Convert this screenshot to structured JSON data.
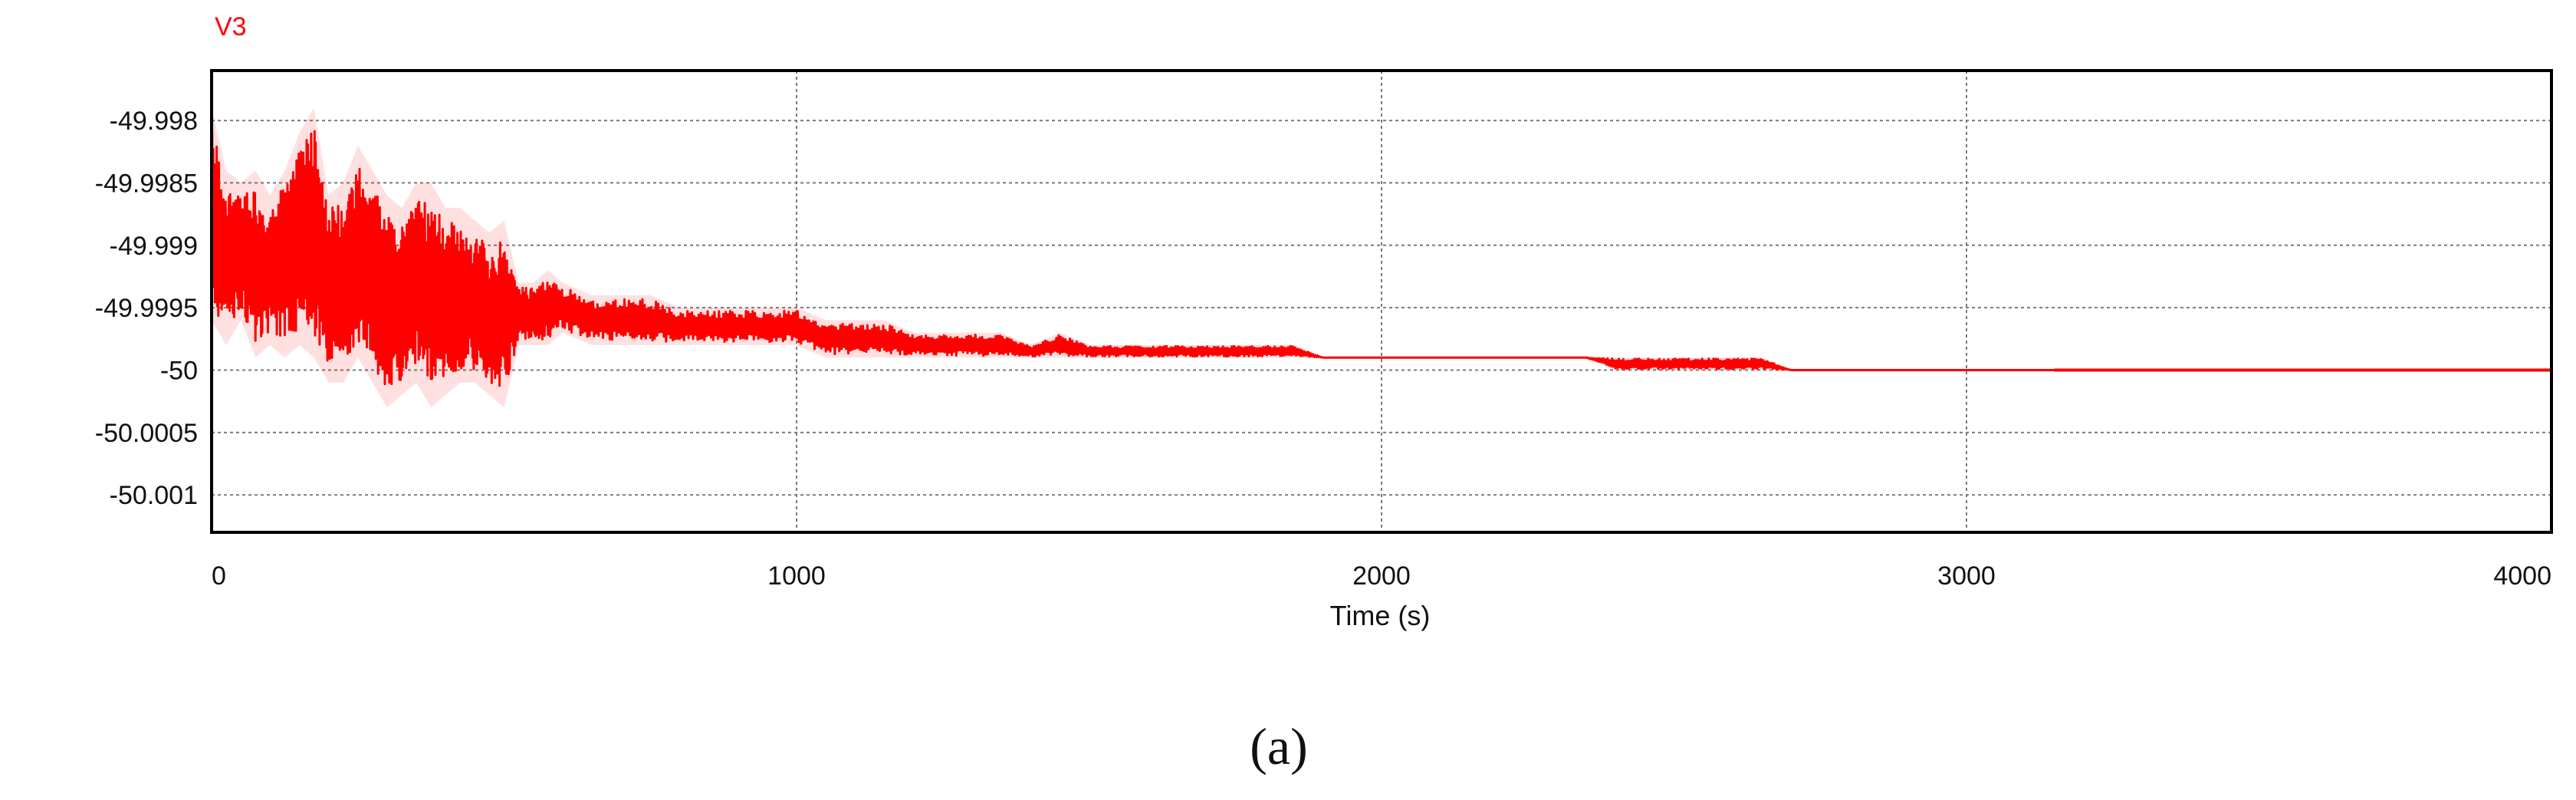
{
  "chart_data": {
    "type": "line",
    "series_label": "V3",
    "panel_label": "(a)",
    "xlabel": "Time (s)",
    "ylabel": "",
    "xlim": [
      0,
      4000
    ],
    "ylim": [
      -50.0013,
      -49.9976
    ],
    "x_ticks": [
      0,
      1000,
      2000,
      3000,
      4000
    ],
    "x_tick_labels": [
      "0",
      "1000",
      "2000",
      "3000",
      "4000"
    ],
    "y_ticks": [
      -49.998,
      -49.9985,
      -49.999,
      -49.9995,
      -50,
      -50.0005,
      -50.001
    ],
    "y_tick_labels": [
      "-49.998",
      "-49.9985",
      "-49.999",
      "-49.9995",
      "-50",
      "-50.0005",
      "-50.001"
    ],
    "grid": true,
    "series": [
      {
        "name": "V3",
        "color": "#ff0000",
        "x": [
          0,
          25,
          50,
          75,
          100,
          125,
          150,
          175,
          200,
          225,
          250,
          275,
          300,
          325,
          350,
          375,
          400,
          425,
          450,
          475,
          500,
          525,
          550,
          575,
          600,
          650,
          700,
          750,
          800,
          850,
          900,
          950,
          1000,
          1050,
          1100,
          1150,
          1200,
          1250,
          1300,
          1350,
          1400,
          1450,
          1500,
          1550,
          1600,
          1650,
          1700,
          1750,
          1800,
          1850,
          1900,
          1950,
          2000,
          2050,
          2100,
          2150,
          2200,
          2250,
          2300,
          2350,
          2400,
          2450,
          2500,
          2550,
          2600,
          2650,
          2700,
          2750,
          2800,
          2850,
          2900,
          2950,
          3000,
          3050,
          3100,
          3150,
          3200,
          3300,
          3400,
          3500,
          3600,
          3700,
          3800,
          3900,
          4000
        ],
        "min": [
          -49.9996,
          -49.9998,
          -49.9996,
          -49.9999,
          -49.9998,
          -49.9999,
          -49.9998,
          -49.9999,
          -50.0001,
          -50.0001,
          -49.9999,
          -50.0001,
          -50.0003,
          -50.0002,
          -50.0001,
          -50.0003,
          -50.0002,
          -50.0001,
          -50.0001,
          -50.0002,
          -50.0003,
          -49.9998,
          -49.9998,
          -49.9998,
          -49.9997,
          -49.9998,
          -49.9998,
          -49.9998,
          -49.9998,
          -49.9998,
          -49.9998,
          -49.9998,
          -49.9998,
          -49.9999,
          -49.9999,
          -49.9999,
          -49.9999,
          -49.9999,
          -49.9999,
          -49.9999,
          -49.9999,
          -49.9999,
          -49.9999,
          -49.9999,
          -49.9999,
          -49.9999,
          -49.9999,
          -49.9999,
          -49.9999,
          -49.9999,
          -49.9999,
          -49.9999,
          -49.9999,
          -49.9999,
          -49.9999,
          -49.9999,
          -49.9999,
          -49.9999,
          -49.9999,
          -49.9999,
          -50,
          -50,
          -50,
          -50,
          -50,
          -50,
          -50,
          -50,
          -50,
          -50,
          -50,
          -50,
          -50,
          -50,
          -50,
          -50,
          -50,
          -50,
          -50,
          -50,
          -50,
          -50,
          -50,
          -50,
          -50
        ],
        "max": [
          -49.9979,
          -49.9984,
          -49.9985,
          -49.9984,
          -49.9986,
          -49.9984,
          -49.9981,
          -49.9979,
          -49.9986,
          -49.9985,
          -49.9982,
          -49.9984,
          -49.9986,
          -49.9987,
          -49.9985,
          -49.9985,
          -49.9987,
          -49.9987,
          -49.9988,
          -49.9989,
          -49.9988,
          -49.9993,
          -49.9993,
          -49.9992,
          -49.9993,
          -49.9994,
          -49.9994,
          -49.9994,
          -49.9995,
          -49.9995,
          -49.9995,
          -49.9995,
          -49.9995,
          -49.9996,
          -49.9996,
          -49.9996,
          -49.9997,
          -49.9997,
          -49.9997,
          -49.9997,
          -49.9998,
          -49.9997,
          -49.9998,
          -49.9998,
          -49.9998,
          -49.9998,
          -49.9998,
          -49.9998,
          -49.9998,
          -49.9998,
          -49.9999,
          -49.9999,
          -49.9999,
          -49.9999,
          -49.9999,
          -49.9999,
          -49.9999,
          -49.9999,
          -49.9999,
          -49.9999,
          -49.9999,
          -49.9999,
          -49.9999,
          -49.9999,
          -49.9999,
          -49.9999,
          -50,
          -50,
          -50,
          -50,
          -50,
          -50,
          -50,
          -50,
          -50,
          -50,
          -50,
          -50,
          -50,
          -50,
          -50,
          -50,
          -50,
          -50,
          -50
        ]
      }
    ]
  }
}
